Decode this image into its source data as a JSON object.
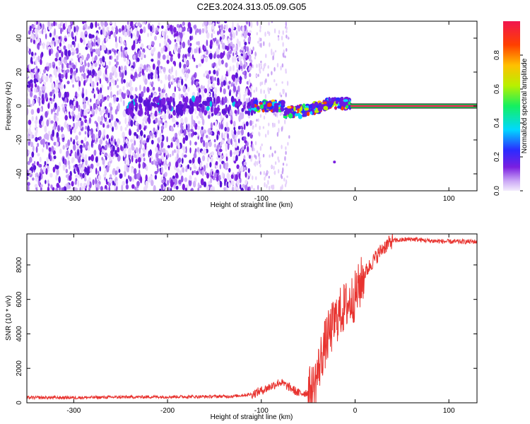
{
  "title": "C2E3.2024.313.05.09.G05",
  "chart_data": [
    {
      "type": "heatmap",
      "xlabel": "Height of straight line (km)",
      "ylabel": "Frequency (Hz)",
      "xlim": [
        -350,
        130
      ],
      "ylim": [
        -50,
        50
      ],
      "xticks": [
        -300,
        -200,
        -100,
        0,
        100
      ],
      "yticks": [
        -40,
        -20,
        0,
        20,
        40
      ],
      "colorbar": {
        "label": "Normalized spectral amplitude",
        "range": [
          0,
          1
        ],
        "ticks": [
          "0.0",
          "0.2",
          "0.4",
          "0.6",
          "0.8"
        ],
        "colors": [
          "#e9d6fb",
          "#7a1fe0",
          "#2b2bff",
          "#00d8ff",
          "#14f060",
          "#b8f000",
          "#ffc000",
          "#ff4000",
          "#f0154f"
        ]
      },
      "features": {
        "noise_region_x": [
          -350,
          -110
        ],
        "transition_region_x": [
          -110,
          -5
        ],
        "line_region_x": [
          -5,
          130
        ],
        "signal_freq_hz": 0,
        "outlier_point": [
          -22,
          -33
        ]
      }
    },
    {
      "type": "line",
      "xlabel": "Height of straight line (km)",
      "ylabel": "SNR (10 * v/v)",
      "xlim": [
        -350,
        130
      ],
      "ylim": [
        0,
        9800
      ],
      "xticks": [
        -300,
        -200,
        -100,
        0,
        100
      ],
      "yticks": [
        0,
        2000,
        4000,
        6000,
        8000
      ],
      "line_color": "#e8332f",
      "profile": {
        "x": [
          -350,
          -300,
          -250,
          -200,
          -160,
          -130,
          -110,
          -100,
          -90,
          -80,
          -70,
          -60,
          -50,
          -45,
          -40,
          -35,
          -30,
          -25,
          -20,
          -15,
          -10,
          -5,
          0,
          5,
          10,
          20,
          30,
          40,
          60,
          80,
          100,
          130
        ],
        "y": [
          300,
          300,
          330,
          350,
          360,
          380,
          500,
          700,
          950,
          1200,
          900,
          550,
          600,
          800,
          1700,
          2900,
          3700,
          4300,
          4900,
          5300,
          5600,
          5900,
          6200,
          6800,
          7500,
          8300,
          9000,
          9400,
          9500,
          9400,
          9350,
          9350
        ]
      }
    }
  ]
}
